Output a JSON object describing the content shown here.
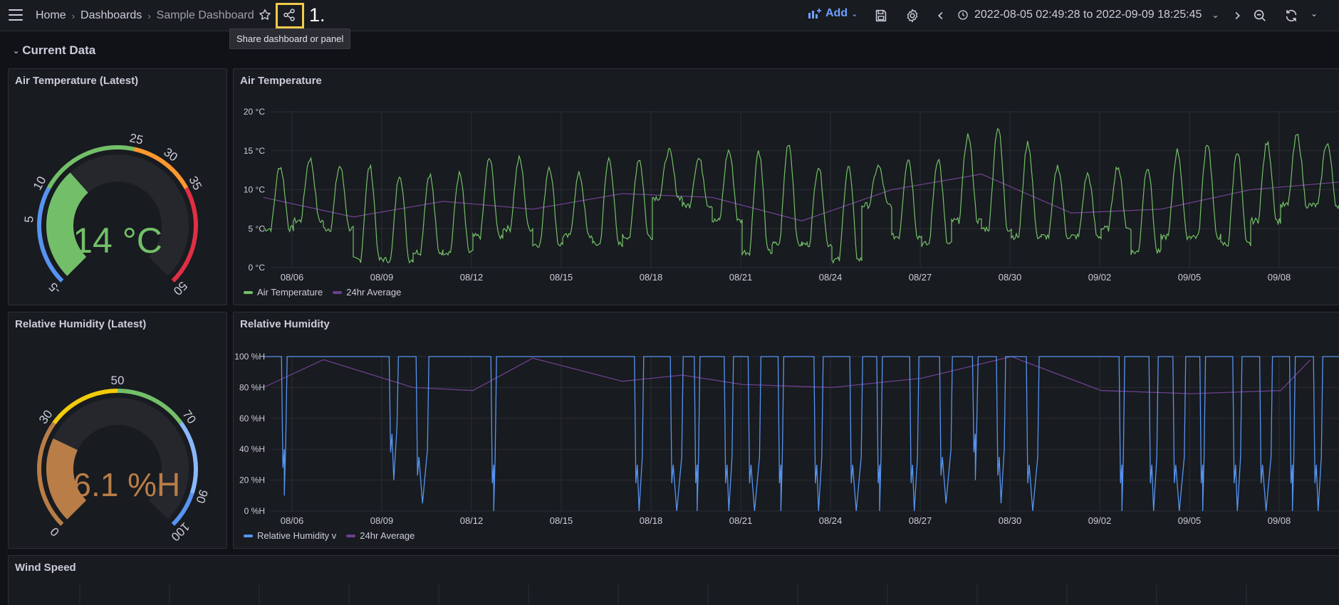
{
  "topbar": {
    "breadcrumbs": [
      "Home",
      "Dashboards",
      "Sample Dashboard"
    ],
    "step_label": "1.",
    "tooltip": "Share dashboard or panel",
    "add_label": "Add",
    "time_range": "2022-08-05 02:49:28 to 2022-09-09 18:25:45",
    "colors": {
      "accent": "#6e9fff",
      "highlight": "#f2c94c"
    }
  },
  "row": {
    "title": "Current Data"
  },
  "panels": {
    "air_temp_latest": {
      "title": "Air Temperature (Latest)",
      "value": 14,
      "display": "14 °C",
      "min": -5,
      "max": 50,
      "ticks": [
        "-5",
        "5",
        "10",
        "25",
        "30",
        "35",
        "50"
      ],
      "color": "#73bf69"
    },
    "air_temp_chart": {
      "title": "Air Temperature",
      "legend": [
        {
          "name": "Air Temperature",
          "color": "#73bf69"
        },
        {
          "name": "24hr Average",
          "color": "#6c3f8e"
        }
      ]
    },
    "humidity_latest": {
      "title": "Relative Humidity (Latest)",
      "value": 26.1,
      "display": "26.1 %H",
      "min": 0,
      "max": 100,
      "ticks": [
        "0",
        "30",
        "50",
        "70",
        "90",
        "100"
      ],
      "color": "#b97d47"
    },
    "humidity_chart": {
      "title": "Relative Humidity",
      "legend": [
        {
          "name": "Relative Humidity v",
          "color": "#5794f2"
        },
        {
          "name": "24hr Average",
          "color": "#6c3f8e"
        }
      ]
    },
    "wind_speed": {
      "title": "Wind Speed"
    }
  },
  "chart_data": [
    {
      "type": "line",
      "title": "Air Temperature",
      "xlabel": "",
      "ylabel": "",
      "ylim": [
        0,
        20
      ],
      "y_ticks": [
        "0 °C",
        "5 °C",
        "10 °C",
        "15 °C",
        "20 °C"
      ],
      "x_ticks": [
        "08/06",
        "08/09",
        "08/12",
        "08/15",
        "08/18",
        "08/21",
        "08/24",
        "08/27",
        "08/30",
        "09/02",
        "09/05",
        "09/08"
      ],
      "grid": true,
      "legend_position": "bottom-left",
      "series": [
        {
          "name": "Air Temperature",
          "color": "#73bf69",
          "x": [
            "08/05",
            "08/06",
            "08/07",
            "08/08",
            "08/09",
            "08/10",
            "08/11",
            "08/12",
            "08/13",
            "08/14",
            "08/15",
            "08/16",
            "08/17",
            "08/18",
            "08/19",
            "08/20",
            "08/21",
            "08/22",
            "08/23",
            "08/24",
            "08/25",
            "08/26",
            "08/27",
            "08/28",
            "08/29",
            "08/30",
            "08/31",
            "09/01",
            "09/02",
            "09/03",
            "09/04",
            "09/05",
            "09/06",
            "09/07",
            "09/08",
            "09/09"
          ],
          "daily_min": [
            5,
            6,
            5,
            1,
            1,
            2,
            2,
            4,
            5,
            3,
            4,
            3,
            4,
            9,
            8,
            6,
            2,
            3,
            3,
            1,
            8,
            4,
            3,
            6,
            5,
            4,
            4,
            4,
            5,
            2,
            4,
            4,
            3,
            6,
            8,
            8
          ],
          "daily_max": [
            13,
            14,
            13,
            13,
            12,
            12,
            12,
            14,
            14,
            13,
            12,
            14,
            14,
            15,
            14,
            15,
            15,
            16,
            13,
            13,
            13,
            14,
            14,
            17,
            18,
            16,
            13,
            12,
            13,
            13,
            15,
            16,
            15,
            16,
            17,
            16
          ]
        },
        {
          "name": "24hr Average",
          "color": "#6c3f8e",
          "x": [
            "08/05",
            "08/08",
            "08/11",
            "08/14",
            "08/17",
            "08/20",
            "08/23",
            "08/26",
            "08/29",
            "09/01",
            "09/04",
            "09/07",
            "09/09"
          ],
          "values": [
            9,
            6.5,
            8.5,
            7.5,
            9.5,
            9,
            6,
            10,
            12,
            7,
            7.5,
            10,
            11
          ]
        }
      ]
    },
    {
      "type": "line",
      "title": "Relative Humidity",
      "xlabel": "",
      "ylabel": "",
      "ylim": [
        0,
        100
      ],
      "y_ticks": [
        "0 %H",
        "20 %H",
        "40 %H",
        "60 %H",
        "80 %H",
        "100 %H"
      ],
      "x_ticks": [
        "08/06",
        "08/09",
        "08/12",
        "08/15",
        "08/18",
        "08/21",
        "08/24",
        "08/27",
        "08/30",
        "09/02",
        "09/05",
        "09/08"
      ],
      "grid": true,
      "legend_position": "bottom-left",
      "series": [
        {
          "name": "Relative Humidity v",
          "color": "#5794f2",
          "baseline": 100,
          "dips_to": [
            10,
            20,
            5,
            0,
            0,
            0,
            0,
            0,
            0,
            0,
            0,
            0,
            0,
            0,
            5,
            20,
            5,
            0,
            0,
            0,
            0,
            0,
            0,
            0,
            0,
            0
          ]
        },
        {
          "name": "24hr Average",
          "color": "#6c3f8e",
          "x": [
            "08/05",
            "08/07",
            "08/10",
            "08/12",
            "08/14",
            "08/17",
            "08/19",
            "08/21",
            "08/24",
            "08/27",
            "08/30",
            "09/02",
            "09/05",
            "09/08",
            "09/09"
          ],
          "values": [
            80,
            98,
            80,
            78,
            99,
            84,
            88,
            82,
            80,
            86,
            100,
            78,
            76,
            78,
            98
          ]
        }
      ]
    },
    {
      "type": "gauge",
      "title": "Air Temperature (Latest)",
      "value": 14,
      "min": -5,
      "max": 50,
      "thresholds": [
        {
          "from": -5,
          "to": 10,
          "color": "#5794f2"
        },
        {
          "from": 10,
          "to": 25,
          "color": "#73bf69"
        },
        {
          "from": 25,
          "to": 35,
          "color": "#ff9830"
        },
        {
          "from": 35,
          "to": 50,
          "color": "#e02f44"
        }
      ]
    },
    {
      "type": "gauge",
      "title": "Relative Humidity (Latest)",
      "value": 26.1,
      "min": 0,
      "max": 100,
      "thresholds": [
        {
          "from": 0,
          "to": 30,
          "color": "#b97d47"
        },
        {
          "from": 30,
          "to": 50,
          "color": "#f2cc0c"
        },
        {
          "from": 50,
          "to": 70,
          "color": "#73bf69"
        },
        {
          "from": 70,
          "to": 90,
          "color": "#8ab8ff"
        },
        {
          "from": 90,
          "to": 100,
          "color": "#5794f2"
        }
      ]
    }
  ]
}
